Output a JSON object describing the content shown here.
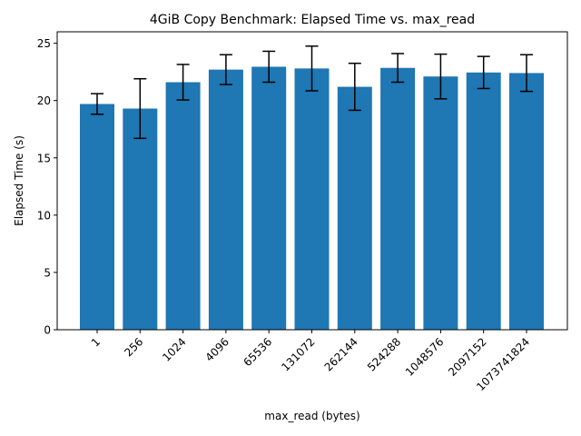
{
  "chart_data": {
    "type": "bar",
    "title": "4GiB Copy Benchmark: Elapsed Time vs. max_read",
    "xlabel": "max_read (bytes)",
    "ylabel": "Elapsed Time (s)",
    "categories": [
      "1",
      "256",
      "1024",
      "4096",
      "65536",
      "131072",
      "262144",
      "524288",
      "1048576",
      "2097152",
      "1073741824"
    ],
    "values": [
      19.7,
      19.3,
      21.6,
      22.7,
      22.95,
      22.8,
      21.2,
      22.85,
      22.1,
      22.45,
      22.4
    ],
    "error": [
      0.9,
      2.6,
      1.55,
      1.3,
      1.35,
      1.95,
      2.05,
      1.25,
      1.95,
      1.4,
      1.6
    ],
    "ylim": [
      0,
      26
    ],
    "yticks": [
      0,
      5,
      10,
      15,
      20,
      25
    ],
    "bar_color": "#1f77b4",
    "error_color": "#000000",
    "grid": false,
    "legend": "none"
  }
}
